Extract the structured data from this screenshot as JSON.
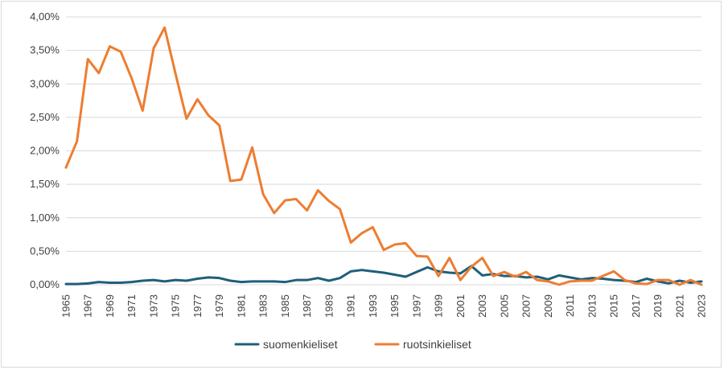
{
  "chart_data": {
    "type": "line",
    "title": "",
    "xlabel": "",
    "ylabel": "",
    "ylim": [
      0,
      4.0
    ],
    "y_ticks": [
      "0,00%",
      "0,50%",
      "1,00%",
      "1,50%",
      "2,00%",
      "2,50%",
      "3,00%",
      "3,50%",
      "4,00%"
    ],
    "y_tick_values": [
      0,
      0.5,
      1.0,
      1.5,
      2.0,
      2.5,
      3.0,
      3.5,
      4.0
    ],
    "x_tick_labels": [
      "1965",
      "1967",
      "1969",
      "1971",
      "1973",
      "1975",
      "1977",
      "1979",
      "1981",
      "1983",
      "1985",
      "1987",
      "1989",
      "1991",
      "1993",
      "1995",
      "1997",
      "1999",
      "2001",
      "2003",
      "2005",
      "2007",
      "2009",
      "2011",
      "2013",
      "2015",
      "2017",
      "2019",
      "2021",
      "2023"
    ],
    "grid": "horizontal",
    "legend": "bottom",
    "x": [
      1965,
      1966,
      1967,
      1968,
      1969,
      1970,
      1971,
      1972,
      1973,
      1974,
      1975,
      1976,
      1977,
      1978,
      1979,
      1980,
      1981,
      1982,
      1983,
      1984,
      1985,
      1986,
      1987,
      1988,
      1989,
      1990,
      1991,
      1992,
      1993,
      1994,
      1995,
      1996,
      1997,
      1998,
      1999,
      2000,
      2001,
      2002,
      2003,
      2004,
      2005,
      2006,
      2007,
      2008,
      2009,
      2010,
      2011,
      2012,
      2013,
      2014,
      2015,
      2016,
      2017,
      2018,
      2019,
      2020,
      2021,
      2022,
      2023
    ],
    "series": [
      {
        "name": "suomenkieliset",
        "color": "#1f5f7a",
        "values": [
          0.01,
          0.01,
          0.02,
          0.04,
          0.03,
          0.03,
          0.04,
          0.06,
          0.07,
          0.05,
          0.07,
          0.06,
          0.09,
          0.11,
          0.1,
          0.06,
          0.04,
          0.05,
          0.05,
          0.05,
          0.04,
          0.07,
          0.07,
          0.1,
          0.06,
          0.1,
          0.2,
          0.22,
          0.2,
          0.18,
          0.15,
          0.12,
          0.19,
          0.26,
          0.2,
          0.18,
          0.17,
          0.28,
          0.14,
          0.16,
          0.13,
          0.13,
          0.11,
          0.12,
          0.08,
          0.14,
          0.11,
          0.08,
          0.1,
          0.09,
          0.07,
          0.06,
          0.04,
          0.09,
          0.05,
          0.02,
          0.06,
          0.03,
          0.05
        ]
      },
      {
        "name": "ruotsinkieliset",
        "color": "#ed7d31",
        "values": [
          1.75,
          2.14,
          3.37,
          3.16,
          3.56,
          3.48,
          3.08,
          2.6,
          3.53,
          3.84,
          3.15,
          2.48,
          2.77,
          2.53,
          2.38,
          1.55,
          1.57,
          2.05,
          1.35,
          1.07,
          1.26,
          1.28,
          1.11,
          1.41,
          1.25,
          1.13,
          0.63,
          0.77,
          0.86,
          0.52,
          0.6,
          0.62,
          0.43,
          0.42,
          0.13,
          0.4,
          0.07,
          0.27,
          0.4,
          0.13,
          0.19,
          0.12,
          0.19,
          0.07,
          0.05,
          0.0,
          0.05,
          0.06,
          0.06,
          0.13,
          0.2,
          0.07,
          0.02,
          0.01,
          0.07,
          0.07,
          0.0,
          0.07,
          0.0
        ]
      }
    ]
  }
}
